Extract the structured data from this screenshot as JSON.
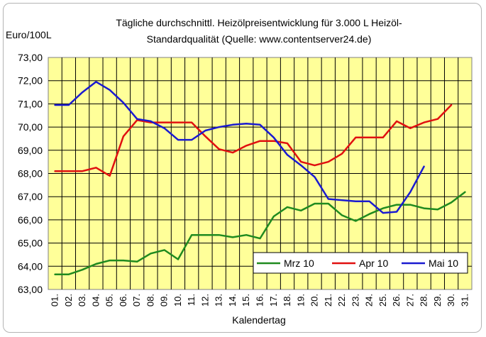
{
  "chart_data": {
    "type": "line",
    "title_lines": [
      "Tägliche durchschnittl. Heizölpreisentwicklung für 3.000 L Heizöl-",
      "Standardqualität (Quelle: www.contentserver24.de)"
    ],
    "ylabel": "Euro/100L",
    "xlabel": "Kalendertag",
    "ylim": [
      63,
      73
    ],
    "yticks": [
      "63,00",
      "64,00",
      "65,00",
      "66,00",
      "67,00",
      "68,00",
      "69,00",
      "70,00",
      "71,00",
      "72,00",
      "73,00"
    ],
    "categories": [
      "01.",
      "02.",
      "03.",
      "04.",
      "05.",
      "06.",
      "07.",
      "08.",
      "09.",
      "10.",
      "11.",
      "12.",
      "13.",
      "14.",
      "15.",
      "16.",
      "17.",
      "18.",
      "19.",
      "20.",
      "21.",
      "22.",
      "23.",
      "24.",
      "25.",
      "26.",
      "27.",
      "28.",
      "29.",
      "30.",
      "31."
    ],
    "grid": true,
    "legend_position": "bottom-right",
    "plot_background": "#ffff99",
    "series": [
      {
        "name": "Mrz 10",
        "color": "#1f8a1f",
        "values": [
          63.65,
          63.65,
          63.85,
          64.1,
          64.25,
          64.25,
          64.2,
          64.55,
          64.7,
          64.3,
          65.35,
          65.35,
          65.35,
          65.25,
          65.35,
          65.2,
          66.15,
          66.55,
          66.4,
          66.7,
          66.7,
          66.2,
          65.95,
          66.25,
          66.5,
          66.65,
          66.65,
          66.5,
          66.45,
          66.75,
          67.2
        ]
      },
      {
        "name": "Apr 10",
        "color": "#e01010",
        "values": [
          68.1,
          68.1,
          68.1,
          68.25,
          67.9,
          69.6,
          70.3,
          70.2,
          70.2,
          70.2,
          70.2,
          69.6,
          69.05,
          68.9,
          69.2,
          69.4,
          69.4,
          69.3,
          68.5,
          68.35,
          68.5,
          68.85,
          69.55,
          69.55,
          69.55,
          70.25,
          69.95,
          70.2,
          70.35,
          70.95,
          null
        ]
      },
      {
        "name": "Mai 10",
        "color": "#1a1ad0",
        "values": [
          70.95,
          70.95,
          71.5,
          71.95,
          71.6,
          71.05,
          70.35,
          70.25,
          69.95,
          69.45,
          69.45,
          69.85,
          70.0,
          70.1,
          70.15,
          70.1,
          69.55,
          68.8,
          68.35,
          67.85,
          66.9,
          66.85,
          66.8,
          66.8,
          66.3,
          66.35,
          67.2,
          68.3,
          null,
          null,
          null
        ]
      }
    ]
  }
}
